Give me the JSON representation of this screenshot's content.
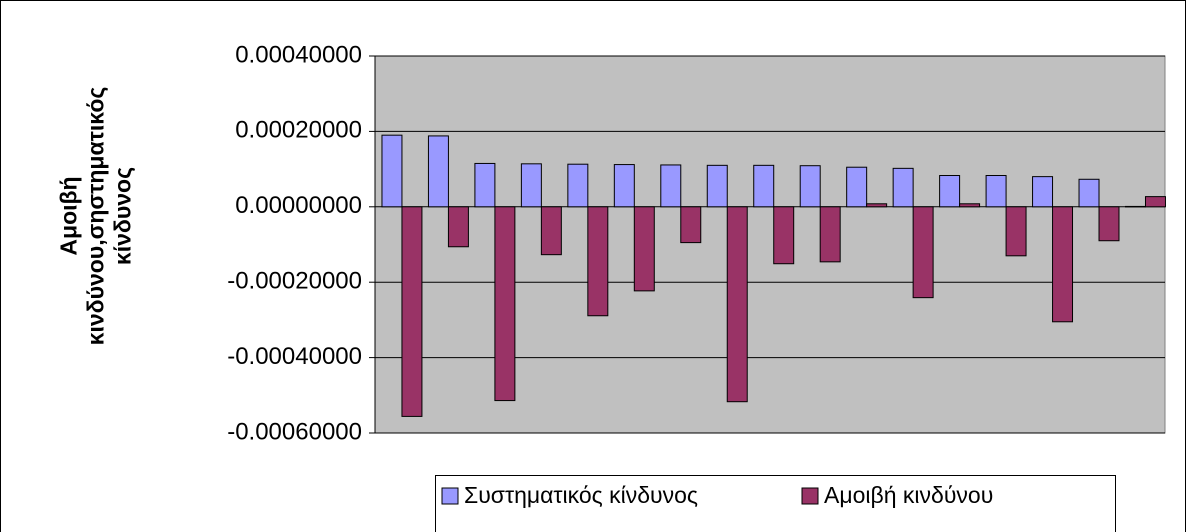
{
  "chart_data": {
    "type": "bar",
    "y_label": "Αμοιβή κινδύνου,σηστηματικός κίνδυνος",
    "categories": [
      null,
      null,
      null,
      null,
      null,
      null,
      null,
      null,
      null,
      null,
      null,
      null,
      null,
      null,
      null,
      null,
      null
    ],
    "series": [
      {
        "name": "Συστηματικός κίνδυνος",
        "color": "#9999ff",
        "values": [
          0.00019,
          0.000188,
          0.000115,
          0.000114,
          0.000113,
          0.000112,
          0.000111,
          0.00011,
          0.00011,
          0.000109,
          0.000105,
          0.000102,
          8.3e-05,
          8.3e-05,
          8e-05,
          7.3e-05,
          1e-06
        ]
      },
      {
        "name": "Αμοιβή κινδύνου",
        "color": "#993366",
        "values": [
          -0.000556,
          -0.000106,
          -0.000514,
          -0.000127,
          -0.000289,
          -0.000223,
          -9.5e-05,
          -0.000517,
          -0.000151,
          -0.000146,
          8e-06,
          -0.000241,
          8e-06,
          -0.00013,
          -0.000305,
          -9e-05,
          2.7e-05
        ]
      }
    ],
    "ylim": [
      -0.0006,
      0.0004
    ],
    "yticks": [
      {
        "value": -0.0006,
        "label": "-0.00060000"
      },
      {
        "value": -0.0004,
        "label": "-0.00040000"
      },
      {
        "value": -0.0002,
        "label": "-0.00020000"
      },
      {
        "value": 0,
        "label": "0.00000000"
      },
      {
        "value": 0.0002,
        "label": "0.00020000"
      },
      {
        "value": 0.0004,
        "label": "0.00040000"
      }
    ],
    "grid": true
  }
}
